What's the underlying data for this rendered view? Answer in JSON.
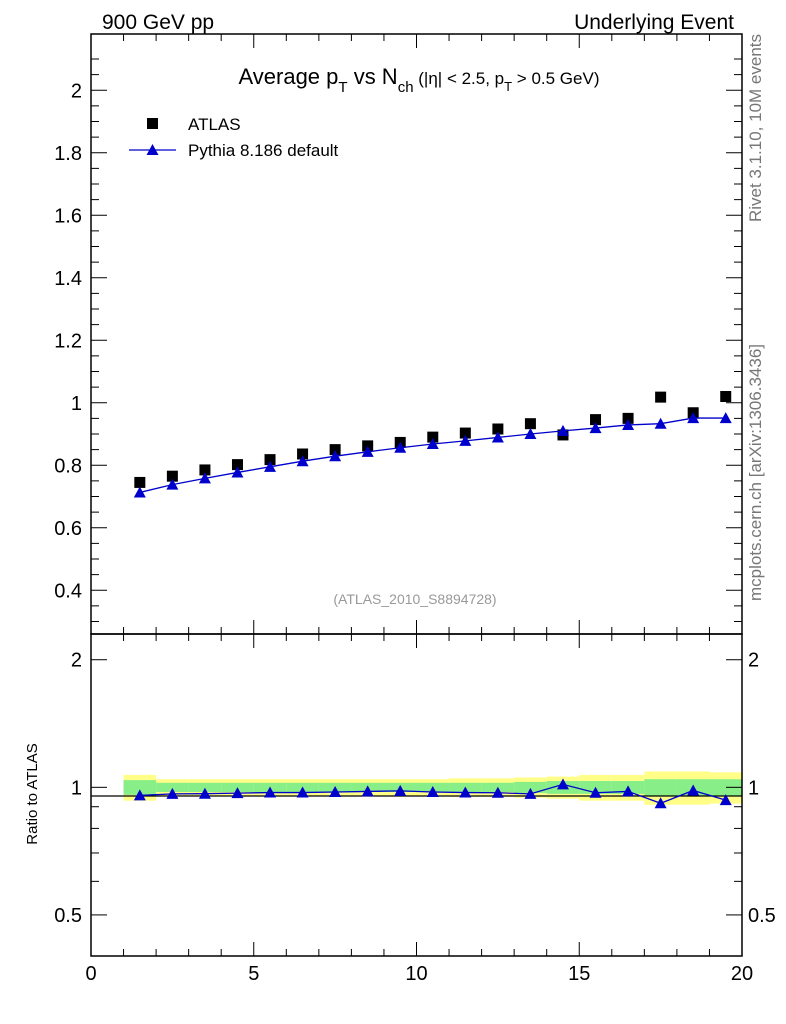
{
  "header": {
    "left": "900 GeV pp",
    "right": "Underlying Event"
  },
  "side_labels": {
    "rivet": "Rivet 3.1.10,  10M events",
    "mcplots": "mcplots.cern.ch [arXiv:1306.3436]"
  },
  "chart_data": [
    {
      "type": "scatter",
      "title": {
        "main": "Average p",
        "main_sub": "T",
        "vs": " vs N",
        "vs_sub": "ch",
        "cut_a": " (|η| < 2.5, p",
        "cut_sub": "T",
        "cut_b": " > 0.5 GeV)"
      },
      "watermark": "(ATLAS_2010_S8894728)",
      "xlim": [
        0,
        20
      ],
      "ylim": [
        0.26,
        2.18
      ],
      "y_ticks": [
        0.4,
        0.6,
        0.8,
        1,
        1.2,
        1.4,
        1.6,
        1.8,
        2
      ],
      "y_tick_labels": [
        "0.4",
        "0.6",
        "0.8",
        "1",
        "1.2",
        "1.4",
        "1.6",
        "1.8",
        "2"
      ],
      "legend_position": "top-left",
      "x": [
        1.5,
        2.5,
        3.5,
        4.5,
        5.5,
        6.5,
        7.5,
        8.5,
        9.5,
        10.5,
        11.5,
        12.5,
        13.5,
        14.5,
        15.5,
        16.5,
        17.5,
        18.5,
        19.5
      ],
      "series": [
        {
          "name": "ATLAS",
          "marker": "square",
          "color": "#000000",
          "values": [
            0.745,
            0.765,
            0.785,
            0.802,
            0.818,
            0.836,
            0.85,
            0.862,
            0.873,
            0.89,
            0.903,
            0.916,
            0.933,
            0.897,
            0.946,
            0.95,
            1.018,
            0.968,
            1.02
          ]
        },
        {
          "name": "Pythia 8.186 default",
          "marker": "triangle",
          "color": "#0000cc",
          "values": [
            0.713,
            0.738,
            0.758,
            0.777,
            0.795,
            0.813,
            0.829,
            0.843,
            0.856,
            0.868,
            0.878,
            0.889,
            0.9,
            0.91,
            0.919,
            0.929,
            0.933,
            0.951,
            0.951
          ]
        }
      ]
    },
    {
      "type": "line",
      "ylabel": "Ratio to ATLAS",
      "xlim": [
        0,
        20
      ],
      "ylim_log": [
        0.4,
        2.3
      ],
      "y_ticks": [
        0.5,
        1,
        2
      ],
      "y_tick_labels": [
        "0.5",
        "1",
        "2"
      ],
      "x_ticks": [
        0,
        5,
        10,
        15,
        20
      ],
      "x_tick_labels": [
        "0",
        "5",
        "10",
        "15",
        "20"
      ],
      "x": [
        1.5,
        2.5,
        3.5,
        4.5,
        5.5,
        6.5,
        7.5,
        8.5,
        9.5,
        10.5,
        11.5,
        12.5,
        13.5,
        14.5,
        15.5,
        16.5,
        17.5,
        18.5,
        19.5
      ],
      "bin_edges": [
        1,
        2,
        3,
        4,
        5,
        6,
        7,
        8,
        9,
        10,
        11,
        12,
        13,
        14,
        15,
        16,
        17,
        18,
        19,
        20
      ],
      "band_green": [
        0.04,
        0.025,
        0.025,
        0.025,
        0.025,
        0.025,
        0.025,
        0.025,
        0.025,
        0.025,
        0.025,
        0.025,
        0.03,
        0.035,
        0.035,
        0.035,
        0.045,
        0.045,
        0.045
      ],
      "band_yellow": [
        0.07,
        0.045,
        0.045,
        0.045,
        0.045,
        0.045,
        0.045,
        0.045,
        0.045,
        0.045,
        0.05,
        0.05,
        0.055,
        0.06,
        0.07,
        0.07,
        0.09,
        0.09,
        0.085
      ],
      "series": [
        {
          "name": "Pythia 8.186 default",
          "color": "#0000cc",
          "values": [
            0.957,
            0.965,
            0.966,
            0.969,
            0.972,
            0.972,
            0.975,
            0.978,
            0.981,
            0.975,
            0.972,
            0.971,
            0.965,
            1.016,
            0.971,
            0.978,
            0.917,
            0.983,
            0.933
          ]
        }
      ]
    }
  ]
}
